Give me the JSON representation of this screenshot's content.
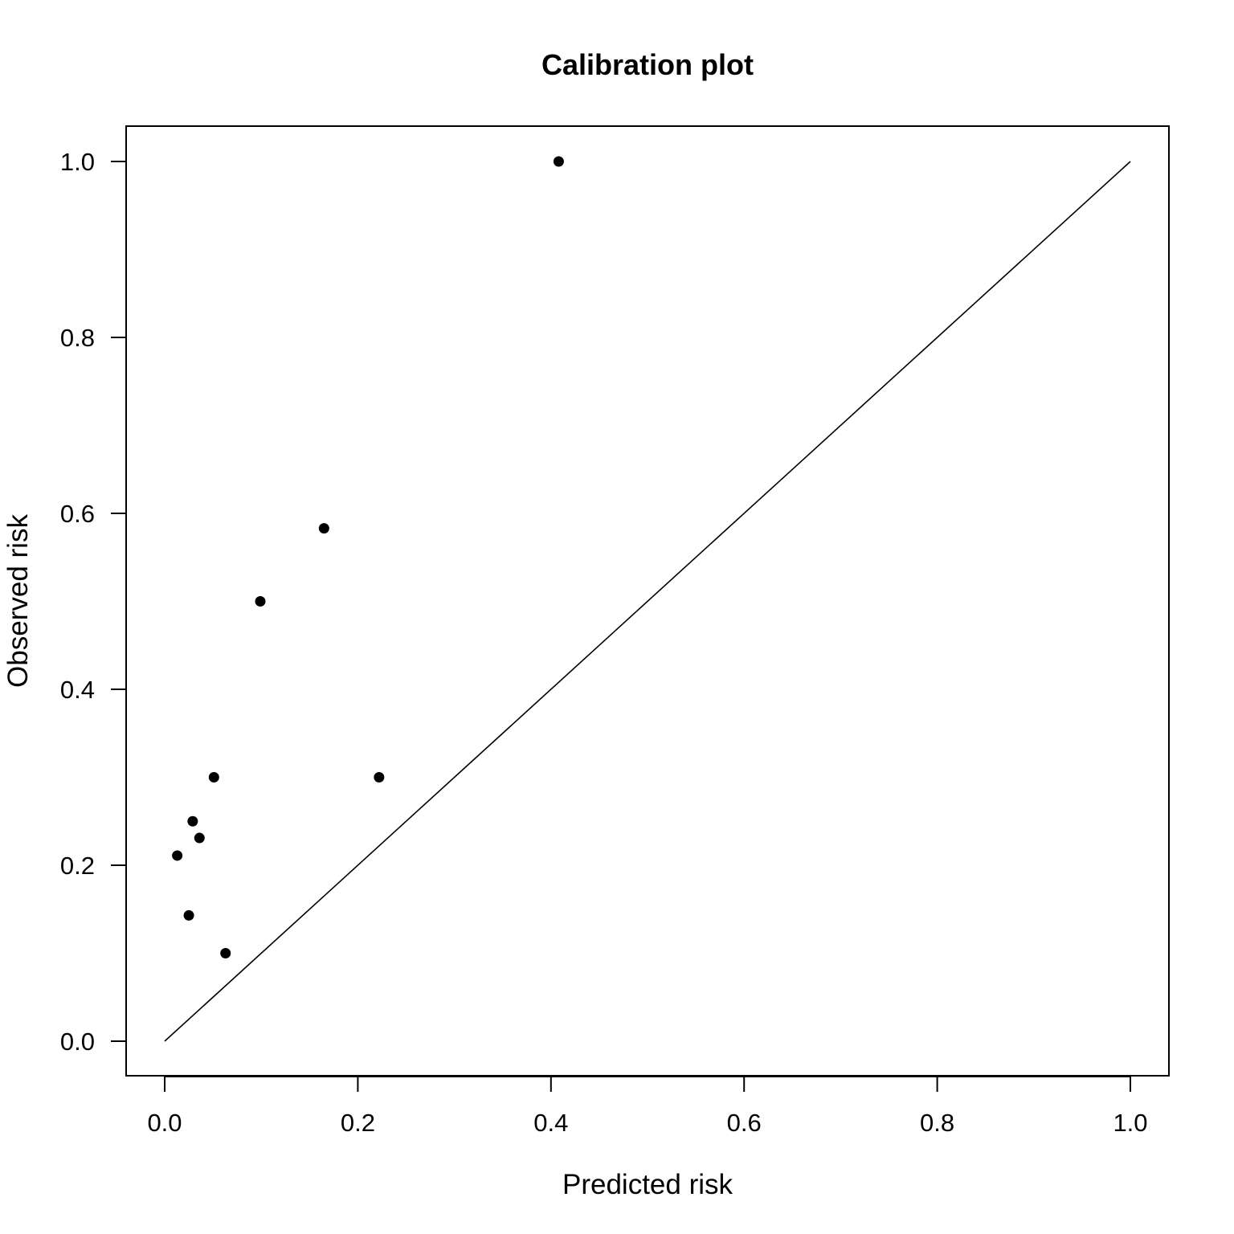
{
  "chart_data": {
    "type": "scatter",
    "title": "Calibration plot",
    "xlabel": "Predicted risk",
    "ylabel": "Observed risk",
    "xlim": [
      0,
      1
    ],
    "ylim": [
      0,
      1
    ],
    "x_ticks": [
      "0.0",
      "0.2",
      "0.4",
      "0.6",
      "0.8",
      "1.0"
    ],
    "y_ticks": [
      "0.0",
      "0.2",
      "0.4",
      "0.6",
      "0.8",
      "1.0"
    ],
    "grid": false,
    "legend": "none",
    "reference_line": {
      "from": [
        0,
        0
      ],
      "to": [
        1,
        1
      ]
    },
    "series": [
      {
        "points": [
          {
            "x": 0.013,
            "y": 0.211
          },
          {
            "x": 0.025,
            "y": 0.143
          },
          {
            "x": 0.029,
            "y": 0.25
          },
          {
            "x": 0.036,
            "y": 0.231
          },
          {
            "x": 0.051,
            "y": 0.3
          },
          {
            "x": 0.063,
            "y": 0.1
          },
          {
            "x": 0.099,
            "y": 0.5
          },
          {
            "x": 0.165,
            "y": 0.583
          },
          {
            "x": 0.222,
            "y": 0.3
          },
          {
            "x": 0.408,
            "y": 1.0
          }
        ]
      }
    ]
  }
}
